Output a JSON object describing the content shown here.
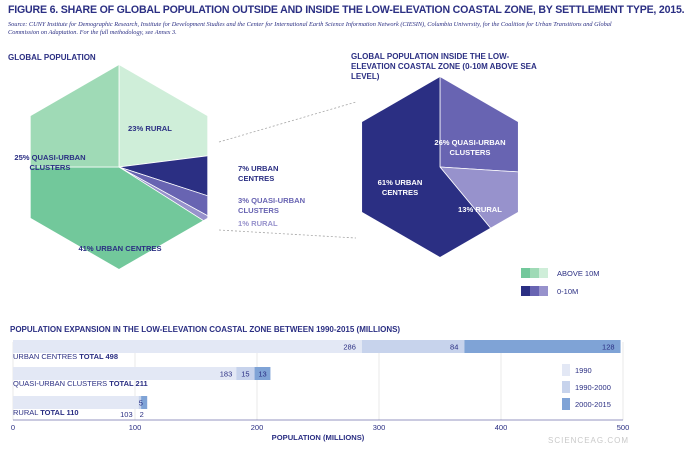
{
  "title": "FIGURE 6. SHARE OF GLOBAL POPULATION OUTSIDE AND INSIDE THE LOW-ELEVATION COASTAL ZONE, BY SETTLEMENT TYPE, 2015.",
  "source": "Source: CUNY Institute for Demographic Research, Institute for Development Studies and the Center for International Earth Science Information Network (CIESIN), Columbia University, for the Coalition for Urban Transitions and Global Commission on Adaptation. For the full methodology, see Annex 3.",
  "watermark": "SCIENCEAG.COM",
  "colors": {
    "navy": "#2b2f83",
    "purple_mid": "#6864b2",
    "purple_light": "#9792cc",
    "green_dark": "#72c89b",
    "green_mid": "#9fdab6",
    "green_light": "#cfeed9",
    "bar_1990": "#e3e8f5",
    "bar_1990_2000": "#c7d3ec",
    "bar_2000_2015": "#7fa3d6"
  },
  "chart_data": [
    {
      "type": "pie",
      "title": "GLOBAL POPULATION",
      "slices": [
        {
          "label": "23% RURAL",
          "value": 23,
          "group": "ABOVE 10M",
          "color": "#cfeed9"
        },
        {
          "label": "7% URBAN CENTRES",
          "value": 7,
          "group": "0-10M",
          "color": "#2b2f83"
        },
        {
          "label": "3% QUASI-URBAN CLUSTERS",
          "value": 3,
          "group": "0-10M",
          "color": "#6864b2"
        },
        {
          "label": "1% RURAL",
          "value": 1,
          "group": "0-10M",
          "color": "#9792cc"
        },
        {
          "label": "41% URBAN CENTRES",
          "value": 41,
          "group": "ABOVE 10M",
          "color": "#72c89b"
        },
        {
          "label": "25% QUASI-URBAN CLUSTERS",
          "value": 25,
          "group": "ABOVE 10M",
          "color": "#9fdab6"
        }
      ],
      "legend": [
        {
          "label": "ABOVE 10M",
          "colors": [
            "#72c89b",
            "#9fdab6",
            "#cfeed9"
          ]
        },
        {
          "label": "0-10M",
          "colors": [
            "#2b2f83",
            "#6864b2",
            "#9792cc"
          ]
        }
      ]
    },
    {
      "type": "pie",
      "title": "GLOBAL POPULATION INSIDE THE LOW-ELEVATION COASTAL ZONE (0-10M ABOVE SEA LEVEL)",
      "slices": [
        {
          "label": "26% QUASI-URBAN CLUSTERS",
          "value": 26,
          "color": "#6864b2"
        },
        {
          "label": "13% RURAL",
          "value": 13,
          "color": "#9792cc"
        },
        {
          "label": "61% URBAN CENTRES",
          "value": 61,
          "color": "#2b2f83"
        }
      ]
    },
    {
      "type": "bar",
      "orientation": "horizontal",
      "stacked": true,
      "title": "POPULATION EXPANSION IN THE LOW-ELEVATION COASTAL ZONE BETWEEN 1990-2015 (MILLIONS)",
      "xlabel": "POPULATION (MILLIONS)",
      "xlim": [
        0,
        500
      ],
      "xticks": [
        "0",
        "100",
        "200",
        "300",
        "400",
        "500"
      ],
      "categories": [
        {
          "name": "URBAN CENTRES",
          "total_label": "TOTAL 498"
        },
        {
          "name": "QUASI-URBAN CLUSTERS",
          "total_label": "TOTAL 211"
        },
        {
          "name": "RURAL",
          "total_label": "TOTAL 110"
        }
      ],
      "series": [
        {
          "name": "1990",
          "values": [
            286,
            183,
            103
          ],
          "labels": [
            "286",
            "183",
            "103"
          ],
          "color": "#e3e8f5"
        },
        {
          "name": "1990-2000",
          "values": [
            84,
            15,
            2
          ],
          "labels": [
            "84",
            "15",
            "2"
          ],
          "color": "#c7d3ec"
        },
        {
          "name": "2000-2015",
          "values": [
            128,
            13,
            5
          ],
          "labels": [
            "128",
            "13",
            "5"
          ],
          "color": "#7fa3d6"
        }
      ]
    }
  ]
}
